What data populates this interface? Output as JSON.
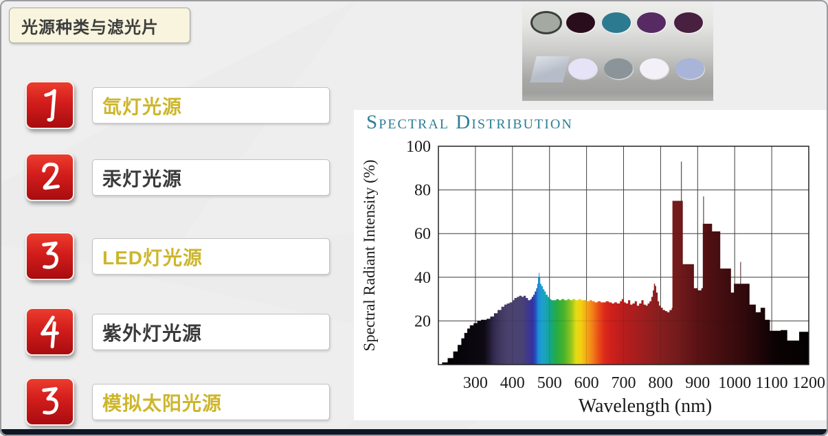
{
  "slide": {
    "title": "光源种类与滤光片",
    "items": [
      {
        "number": "1",
        "label": "氙灯光源",
        "color": "gold"
      },
      {
        "number": "2",
        "label": "汞灯光源",
        "color": "dark"
      },
      {
        "number": "3",
        "label": "LED灯光源",
        "color": "gold"
      },
      {
        "number": "4",
        "label": "紫外灯光源",
        "color": "dark"
      },
      {
        "number": "3",
        "label": "模拟太阳光源",
        "color": "gold"
      }
    ],
    "colors": {
      "gold": "#cdb62c",
      "dark": "#3a3a3a",
      "number_red_top": "#ec3c2f",
      "number_red_bottom": "#a80c10",
      "title_bg": "#f8f4dd",
      "bottom_bar": "#0d1726"
    }
  },
  "filters_photo": {
    "row1": [
      {
        "name": "gray-lens",
        "body": "#a4aaa2",
        "rim": "#3a403c"
      },
      {
        "name": "dark-maroon-filter",
        "body": "#2a0d1d"
      },
      {
        "name": "teal-filter",
        "body": "#2b7a8f"
      },
      {
        "name": "purple-filter",
        "body": "#572a64"
      },
      {
        "name": "plum-filter",
        "body": "#482040"
      }
    ],
    "row2": [
      {
        "name": "gray-square-filter",
        "body": "#b7bdc8",
        "edge": "#dde1e8"
      },
      {
        "name": "lavender-white-filter",
        "body": "#e6e3f8"
      },
      {
        "name": "gray-filter",
        "body": "#8b9599"
      },
      {
        "name": "white-filter",
        "body": "#f4f0f7"
      },
      {
        "name": "periwinkle-filter",
        "body": "#a9b5d8"
      }
    ]
  },
  "chart_data": {
    "type": "area",
    "title": "Spectral Distribution",
    "title_color": "#2d7f96",
    "xlabel": "Wavelength (nm)",
    "ylabel": "Spectral Radiant Intensity (%)",
    "xlim": [
      200,
      1200
    ],
    "ylim": [
      0,
      100
    ],
    "xticks": [
      300,
      400,
      500,
      600,
      700,
      800,
      900,
      1000,
      1100,
      1200
    ],
    "yticks": [
      20,
      40,
      60,
      80,
      100
    ],
    "grid": true,
    "points": [
      [
        200,
        0
      ],
      [
        210,
        1
      ],
      [
        225,
        3
      ],
      [
        240,
        6
      ],
      [
        252,
        9
      ],
      [
        262,
        12
      ],
      [
        270,
        14.5
      ],
      [
        278,
        16.5
      ],
      [
        285,
        18
      ],
      [
        295,
        19
      ],
      [
        305,
        20
      ],
      [
        315,
        20.5
      ],
      [
        330,
        21
      ],
      [
        340,
        22
      ],
      [
        350,
        23.5
      ],
      [
        360,
        25
      ],
      [
        370,
        26.5
      ],
      [
        378,
        27.5
      ],
      [
        385,
        28
      ],
      [
        392,
        28.5
      ],
      [
        400,
        29.5
      ],
      [
        405,
        30.5
      ],
      [
        412,
        31
      ],
      [
        418,
        31.5
      ],
      [
        425,
        31
      ],
      [
        430,
        31.5
      ],
      [
        436,
        30.5
      ],
      [
        442,
        29.5
      ],
      [
        448,
        30
      ],
      [
        452,
        31
      ],
      [
        456,
        32
      ],
      [
        460,
        33.5
      ],
      [
        464,
        35
      ],
      [
        467,
        37
      ],
      [
        469,
        40
      ],
      [
        471,
        42
      ],
      [
        473,
        40
      ],
      [
        475,
        37
      ],
      [
        478,
        36
      ],
      [
        482,
        34.5
      ],
      [
        486,
        33.5
      ],
      [
        490,
        32
      ],
      [
        495,
        31
      ],
      [
        500,
        30
      ],
      [
        505,
        29.5
      ],
      [
        512,
        29.5
      ],
      [
        518,
        30
      ],
      [
        525,
        29.5
      ],
      [
        532,
        30
      ],
      [
        540,
        29.5
      ],
      [
        548,
        30
      ],
      [
        555,
        29.5
      ],
      [
        562,
        30
      ],
      [
        570,
        29.5
      ],
      [
        578,
        30
      ],
      [
        585,
        29.5
      ],
      [
        592,
        29.5
      ],
      [
        600,
        29
      ],
      [
        608,
        29.5
      ],
      [
        615,
        29
      ],
      [
        622,
        28.5
      ],
      [
        630,
        29
      ],
      [
        638,
        28.5
      ],
      [
        645,
        28.5
      ],
      [
        652,
        29
      ],
      [
        660,
        28.5
      ],
      [
        668,
        28
      ],
      [
        675,
        28.5
      ],
      [
        682,
        28
      ],
      [
        690,
        29
      ],
      [
        695,
        30
      ],
      [
        700,
        28.5
      ],
      [
        706,
        28
      ],
      [
        712,
        29.5
      ],
      [
        718,
        27.5
      ],
      [
        724,
        28
      ],
      [
        730,
        29
      ],
      [
        736,
        27
      ],
      [
        742,
        28
      ],
      [
        748,
        29.5
      ],
      [
        754,
        27.5
      ],
      [
        760,
        27
      ],
      [
        765,
        28
      ],
      [
        770,
        29
      ],
      [
        775,
        31
      ],
      [
        779,
        34
      ],
      [
        782,
        37
      ],
      [
        785,
        36
      ],
      [
        788,
        33
      ],
      [
        792,
        29
      ],
      [
        796,
        27
      ],
      [
        800,
        26
      ],
      [
        806,
        25
      ],
      [
        812,
        24.5
      ],
      [
        818,
        24
      ],
      [
        824,
        25
      ],
      [
        830,
        26
      ],
      [
        832,
        75
      ],
      [
        858,
        75
      ],
      [
        860,
        46
      ],
      [
        888,
        46
      ],
      [
        890,
        35
      ],
      [
        900,
        34
      ],
      [
        910,
        35
      ],
      [
        914,
        64.5
      ],
      [
        937,
        64.5
      ],
      [
        939,
        61
      ],
      [
        959,
        61
      ],
      [
        961,
        44
      ],
      [
        987,
        44
      ],
      [
        990,
        33
      ],
      [
        996,
        33
      ],
      [
        998,
        37
      ],
      [
        1037,
        37
      ],
      [
        1040,
        27.5
      ],
      [
        1055,
        27.5
      ],
      [
        1057,
        24
      ],
      [
        1068,
        24
      ],
      [
        1070,
        26
      ],
      [
        1080,
        26
      ],
      [
        1082,
        20.5
      ],
      [
        1093,
        20.5
      ],
      [
        1095,
        15.5
      ],
      [
        1122,
        15.5
      ],
      [
        1124,
        15.8
      ],
      [
        1140,
        15.8
      ],
      [
        1142,
        11
      ],
      [
        1172,
        11
      ],
      [
        1174,
        15
      ],
      [
        1200,
        15
      ],
      [
        1200,
        0
      ]
    ],
    "spikes": [
      [
        856,
        93,
        75
      ],
      [
        916,
        77,
        64.5
      ],
      [
        1016,
        47,
        37
      ]
    ],
    "spectrum_colors": [
      [
        200,
        "#000000"
      ],
      [
        325,
        "#0e0a14"
      ],
      [
        350,
        "#332a4e"
      ],
      [
        370,
        "#423a62"
      ],
      [
        390,
        "#4a426e"
      ],
      [
        425,
        "#4a4272"
      ],
      [
        440,
        "#403a88"
      ],
      [
        455,
        "#3232a2"
      ],
      [
        463,
        "#2355c2"
      ],
      [
        470,
        "#1e8fd4"
      ],
      [
        480,
        "#1ba0cf"
      ],
      [
        495,
        "#18a4a8"
      ],
      [
        505,
        "#17a878"
      ],
      [
        520,
        "#27ab42"
      ],
      [
        540,
        "#4cb32a"
      ],
      [
        558,
        "#93c41e"
      ],
      [
        572,
        "#e2dd15"
      ],
      [
        585,
        "#f4cf13"
      ],
      [
        600,
        "#f5a815"
      ],
      [
        615,
        "#f3821a"
      ],
      [
        632,
        "#ea4f17"
      ],
      [
        648,
        "#dc2a1b"
      ],
      [
        665,
        "#d0201c"
      ],
      [
        700,
        "#b81d1d"
      ],
      [
        745,
        "#a21d1e"
      ],
      [
        790,
        "#8a1e1f"
      ],
      [
        845,
        "#731b1c"
      ],
      [
        900,
        "#5a1214"
      ],
      [
        960,
        "#450e10"
      ],
      [
        1020,
        "#330a0c"
      ],
      [
        1070,
        "#1d0507"
      ],
      [
        1110,
        "#0a0203"
      ],
      [
        1200,
        "#050101"
      ]
    ]
  }
}
